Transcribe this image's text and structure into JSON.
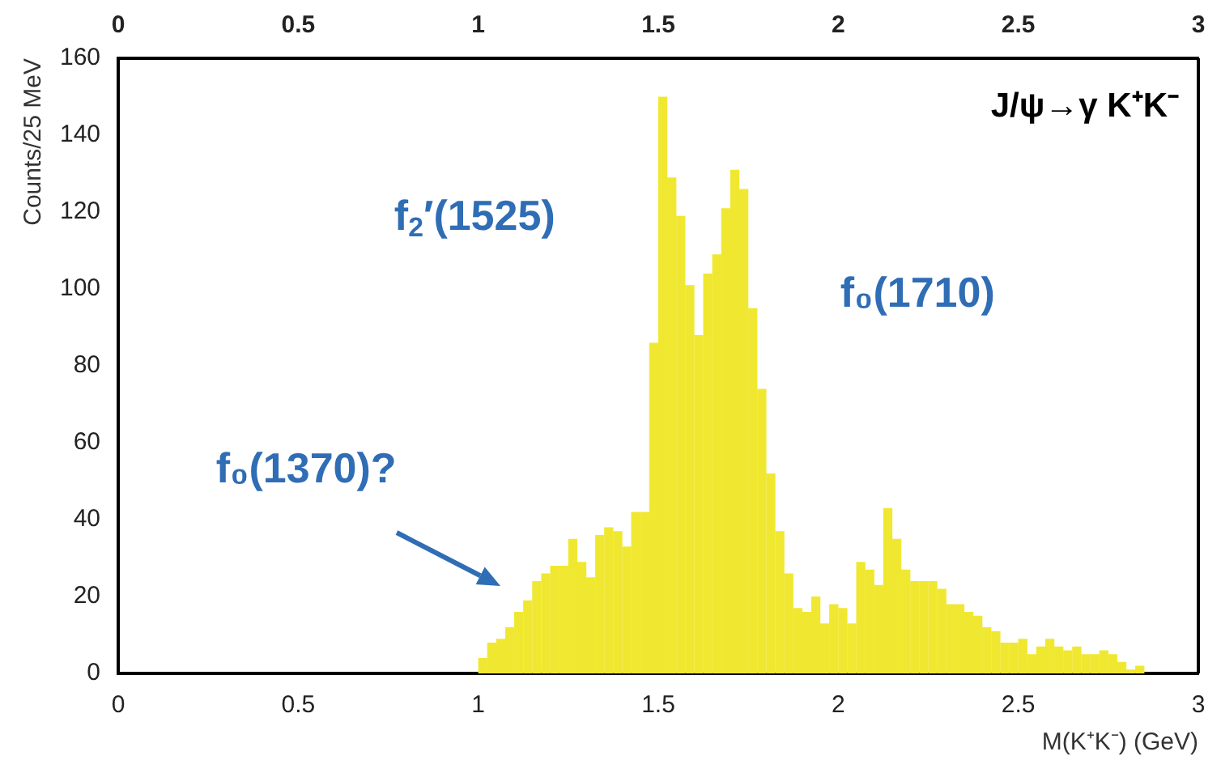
{
  "chart_data": {
    "type": "histogram",
    "title": "J/ψ→γ K⁺K⁻",
    "xlabel": "M(K⁺K⁻) (GeV)",
    "ylabel": "Counts/25 MeV",
    "bins": [
      1.0,
      1.025,
      1.05,
      1.075,
      1.1,
      1.125,
      1.15,
      1.175,
      1.2,
      1.225,
      1.25,
      1.275,
      1.3,
      1.325,
      1.35,
      1.375,
      1.4,
      1.425,
      1.45,
      1.475,
      1.5,
      1.525,
      1.55,
      1.575,
      1.6,
      1.625,
      1.65,
      1.675,
      1.7,
      1.725,
      1.75,
      1.775,
      1.8,
      1.825,
      1.85,
      1.875,
      1.9,
      1.925,
      1.95,
      1.975,
      2.0,
      2.025,
      2.05,
      2.075,
      2.1,
      2.125,
      2.15,
      2.175,
      2.2,
      2.225,
      2.25,
      2.275,
      2.3,
      2.325,
      2.35,
      2.375,
      2.4,
      2.425,
      2.45,
      2.475,
      2.5,
      2.525,
      2.55,
      2.575,
      2.6,
      2.625,
      2.65,
      2.675,
      2.7,
      2.725,
      2.75,
      2.775,
      2.8,
      2.825,
      2.85
    ],
    "values": [
      4,
      8,
      9,
      12,
      16,
      19,
      24,
      26,
      28,
      28,
      35,
      29,
      25,
      36,
      38,
      37,
      33,
      42,
      42,
      86,
      150,
      129,
      119,
      101,
      88,
      104,
      109,
      121,
      131,
      126,
      95,
      74,
      52,
      37,
      26,
      17,
      16,
      20,
      13,
      18,
      17,
      13,
      29,
      27,
      23,
      43,
      35,
      27,
      24,
      24,
      24,
      22,
      18,
      18,
      16,
      15,
      12,
      11,
      8,
      8,
      9,
      5,
      7,
      9,
      7,
      6,
      7,
      5,
      5,
      6,
      5,
      3,
      1,
      2
    ],
    "color": "#f0e830",
    "xlim": [
      0,
      3
    ],
    "xticks": [
      0,
      0.5,
      1,
      1.5,
      2,
      2.5,
      3
    ],
    "x2lim": [
      0,
      3
    ],
    "x2ticks": [
      0,
      0.5,
      1,
      1.5,
      2,
      2.5,
      3
    ],
    "ylim": [
      0,
      160
    ],
    "yticks": [
      0,
      20,
      40,
      60,
      80,
      100,
      120,
      140,
      160
    ],
    "grid": false,
    "legend": false,
    "annotations": [
      "f$_{2}$′(1525)",
      "f₀(1710)",
      "f₀(1370)?"
    ]
  }
}
